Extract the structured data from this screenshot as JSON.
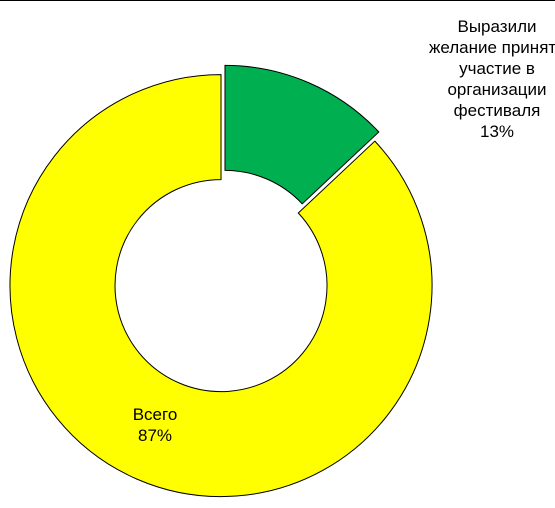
{
  "chart_data": {
    "type": "donut",
    "categories": [
      "Выразили желание принять участие в организации фестиваля",
      "Всего"
    ],
    "values": [
      13,
      87
    ],
    "value_labels": [
      "13%",
      "87%"
    ],
    "colors": [
      "#00b050",
      "#ffff00"
    ]
  }
}
